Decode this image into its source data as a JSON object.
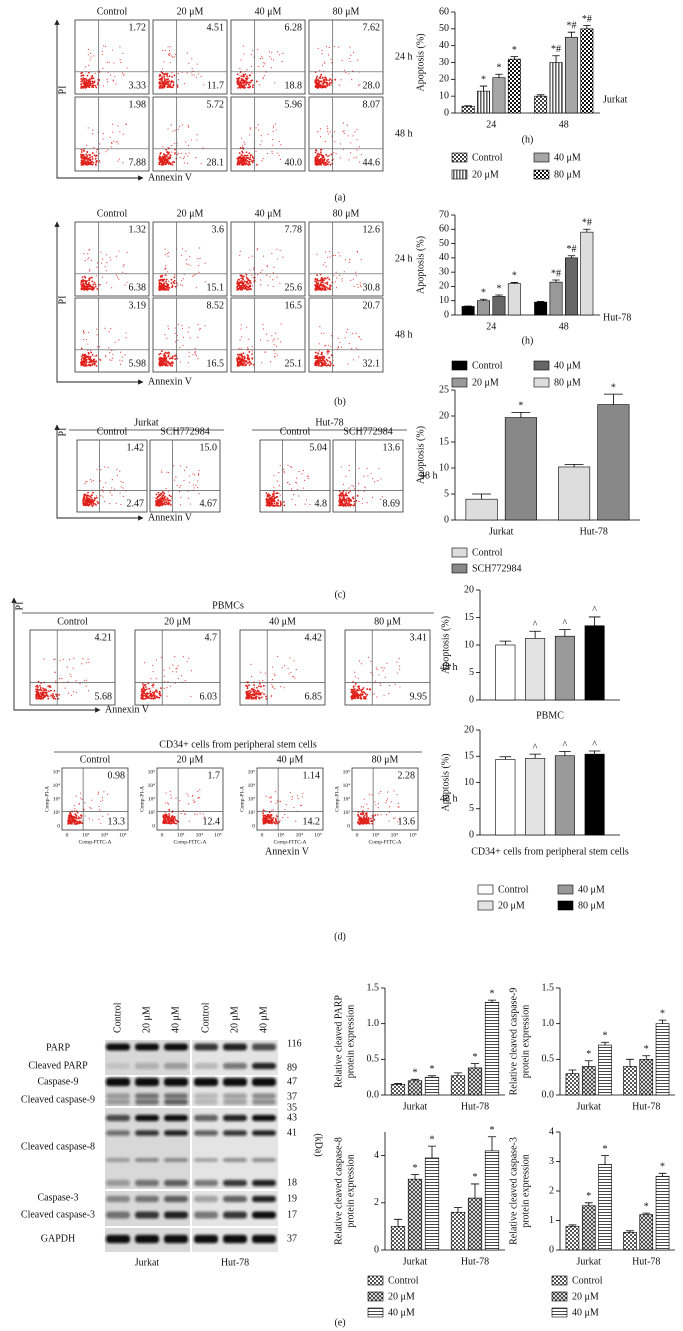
{
  "figure": {
    "panel_labels": [
      "(a)",
      "(b)",
      "(c)",
      "(d)",
      "(e)"
    ],
    "flows": [
      {
        "columns": [
          "Control",
          "20 μM",
          "40 μM",
          "80 μM"
        ],
        "ylabel": "PI",
        "xlabel": "Annexin V",
        "rows": [
          {
            "label": "24 h",
            "cells": [
              [
                "1.72",
                "3.33"
              ],
              [
                "4.51",
                "11.7"
              ],
              [
                "6.28",
                "18.8"
              ],
              [
                "7.62",
                "28.0"
              ]
            ]
          },
          {
            "label": "48 h",
            "cells": [
              [
                "1.98",
                "7.88"
              ],
              [
                "5.72",
                "28.1"
              ],
              [
                "5.96",
                "40.0"
              ],
              [
                "8.07",
                "44.6"
              ]
            ]
          }
        ]
      },
      {
        "columns": [
          "Control",
          "20 μM",
          "40 μM",
          "80 μM"
        ],
        "ylabel": "PI",
        "xlabel": "Annexin V",
        "rows": [
          {
            "label": "24 h",
            "cells": [
              [
                "1.32",
                "6.38"
              ],
              [
                "3.6",
                "15.1"
              ],
              [
                "7.78",
                "25.6"
              ],
              [
                "12.6",
                "30.8"
              ]
            ]
          },
          {
            "label": "48 h",
            "cells": [
              [
                "3.19",
                "5.98"
              ],
              [
                "8.52",
                "16.5"
              ],
              [
                "16.5",
                "25.1"
              ],
              [
                "20.7",
                "32.1"
              ]
            ]
          }
        ]
      },
      {
        "groups": [
          "Jurkat",
          "Hut-78"
        ],
        "columns": [
          "Control",
          "SCH772984",
          "Control",
          "SCH772984"
        ],
        "ylabel": "PI",
        "xlabel": "Annexin V",
        "rows": [
          {
            "label": "48 h",
            "cells": [
              [
                "1.42",
                "2.47"
              ],
              [
                "15.0",
                "4.67"
              ],
              [
                "5.04",
                "4.8"
              ],
              [
                "13.6",
                "8.69"
              ]
            ]
          }
        ]
      },
      {
        "groups": [
          "PBMCs"
        ],
        "columns": [
          "Control",
          "20 μM",
          "40 μM",
          "80 μM"
        ],
        "ylabel": "PI",
        "xlabel": "Annexin V",
        "rows": [
          {
            "label": "48 h",
            "cells": [
              [
                "4.21",
                "5.68"
              ],
              [
                "4.7",
                "6.03"
              ],
              [
                "4.42",
                "6.85"
              ],
              [
                "3.41",
                "9.95"
              ]
            ]
          }
        ]
      },
      {
        "groups": [
          "CD34+ cells from peripheral stem cells"
        ],
        "columns": [
          "Control",
          "20 μM",
          "40 μM",
          "80 μM"
        ],
        "xlabel": "Annexin V",
        "axis_titles": [
          "Comp-PI-A",
          "Comp-FITC-A"
        ],
        "yticks": [
          "0",
          "10²",
          "10³",
          "10⁴",
          "10⁵"
        ],
        "xticks": [
          "0",
          "10³",
          "10⁴",
          "10⁵"
        ],
        "rows": [
          {
            "label": "48 h",
            "cells": [
              [
                "0.98",
                "13.3"
              ],
              [
                "1.7",
                "12.4"
              ],
              [
                "1.14",
                "14.2"
              ],
              [
                "2.28",
                "13.6"
              ]
            ]
          }
        ]
      }
    ],
    "blot": {
      "columns": [
        "Control",
        "20 μM",
        "40 μM"
      ],
      "cell_lines": [
        "Jurkat",
        "Hut-78"
      ],
      "rows": [
        "PARP",
        "Cleaved PARP",
        "Caspase-9",
        "Cleaved caspase-9",
        "Cleaved caspase-8",
        "Caspase-3",
        "Cleaved caspase-3",
        "GAPDH"
      ],
      "kda": [
        "116",
        "89",
        "47",
        "37",
        "35",
        "43",
        "41",
        "18",
        "19",
        "17",
        "37"
      ],
      "unit": "(kDa)"
    }
  },
  "chart_data": [
    {
      "type": "bar",
      "ylabel": [
        "Apoptosis (%)"
      ],
      "xlabel": "(h)",
      "side_label": "Jurkat",
      "categories": [
        "24",
        "48"
      ],
      "ylim": [
        0,
        60
      ],
      "yticks": [
        0,
        10,
        20,
        30,
        40,
        50,
        60
      ],
      "series": [
        {
          "name": "Control",
          "color": "#444444",
          "pattern": "checker",
          "values": [
            4,
            10
          ],
          "errors": [
            0.3,
            0.8
          ]
        },
        {
          "name": "20 μM",
          "color": "#666666",
          "pattern": "vstripe",
          "values": [
            13,
            30
          ],
          "errors": [
            3,
            4
          ],
          "marks": [
            "*",
            "*#"
          ]
        },
        {
          "name": "40 μM",
          "color": "#a6a6a6",
          "values": [
            21,
            45
          ],
          "errors": [
            2,
            3
          ],
          "marks": [
            "*",
            "*#"
          ]
        },
        {
          "name": "80 μM",
          "color": "#111111",
          "pattern": "checker",
          "values": [
            32,
            50
          ],
          "errors": [
            1.5,
            2
          ],
          "marks": [
            "*",
            "*#"
          ]
        }
      ]
    },
    {
      "type": "bar",
      "ylabel": [
        "Apoptosis (%)"
      ],
      "xlabel": "(h)",
      "side_label": "Hut-78",
      "categories": [
        "24",
        "48"
      ],
      "ylim": [
        0,
        70
      ],
      "yticks": [
        0,
        10,
        20,
        30,
        40,
        50,
        60,
        70
      ],
      "series": [
        {
          "name": "Control",
          "color": "#000000",
          "values": [
            6,
            9
          ],
          "errors": [
            0.3,
            0.5
          ]
        },
        {
          "name": "20 μM",
          "color": "#999999",
          "values": [
            10,
            23
          ],
          "errors": [
            1,
            1.5
          ],
          "marks": [
            "*",
            "*#"
          ]
        },
        {
          "name": "40 μM",
          "color": "#666666",
          "values": [
            13,
            40
          ],
          "errors": [
            1,
            1.5
          ],
          "marks": [
            "*",
            "*#"
          ]
        },
        {
          "name": "80 μM",
          "color": "#dddddd",
          "values": [
            22,
            58
          ],
          "errors": [
            0.8,
            2
          ],
          "marks": [
            "*",
            "*#"
          ]
        }
      ]
    },
    {
      "type": "bar",
      "ylabel": [
        "Apoptosis (%)"
      ],
      "categories": [
        "Jurkat",
        "Hut-78"
      ],
      "ylim": [
        0,
        25
      ],
      "yticks": [
        0,
        5,
        10,
        15,
        20,
        25
      ],
      "series": [
        {
          "name": "Control",
          "color": "#dddddd",
          "values": [
            4,
            10.2
          ],
          "errors": [
            1,
            0.5
          ]
        },
        {
          "name": "SCH772984",
          "color": "#888888",
          "values": [
            19.7,
            22.2
          ],
          "errors": [
            1,
            2
          ],
          "marks": [
            "*",
            "*"
          ]
        }
      ]
    },
    {
      "type": "bar",
      "ylabel": [
        "Apoptosis (%)"
      ],
      "xlabel": "PBMC",
      "ylim": [
        0,
        20
      ],
      "yticks": [
        0,
        5,
        10,
        15,
        20
      ],
      "series": [
        {
          "color": "#ffffff",
          "values": [
            10
          ],
          "errors": [
            0.7
          ]
        },
        {
          "color": "#e3e3e3",
          "values": [
            11.2
          ],
          "errors": [
            1.3
          ],
          "marks": [
            "^"
          ]
        },
        {
          "color": "#999999",
          "values": [
            11.6
          ],
          "errors": [
            1.2
          ],
          "marks": [
            "^"
          ]
        },
        {
          "color": "#000000",
          "values": [
            13.5
          ],
          "errors": [
            1.6
          ],
          "marks": [
            "^"
          ]
        }
      ]
    },
    {
      "type": "bar",
      "ylabel": [
        "Apoptosis (%)"
      ],
      "xlabel": "CD34+ cells from peripheral stem cells",
      "ylim": [
        0,
        20
      ],
      "yticks": [
        0,
        5,
        10,
        15,
        20
      ],
      "series": [
        {
          "name": "Control",
          "color": "#ffffff",
          "values": [
            14.4
          ],
          "errors": [
            0.5
          ]
        },
        {
          "name": "20 μM",
          "color": "#e3e3e3",
          "values": [
            14.6
          ],
          "errors": [
            0.8
          ],
          "marks": [
            "^"
          ]
        },
        {
          "name": "40 μM",
          "color": "#999999",
          "values": [
            15.1
          ],
          "errors": [
            0.8
          ],
          "marks": [
            "^"
          ]
        },
        {
          "name": "80 μM",
          "color": "#000000",
          "values": [
            15.4
          ],
          "errors": [
            0.6
          ],
          "marks": [
            "^"
          ]
        }
      ]
    },
    {
      "type": "bar",
      "ylabel": [
        "Relative cleaved PARP",
        "protein expression"
      ],
      "categories": [
        "Jurkat",
        "Hut-78"
      ],
      "ylim": [
        0,
        1.5
      ],
      "yticks": [
        {
          "value": 0,
          "label": "0.0"
        },
        0.5,
        {
          "value": 1,
          "label": "1.0"
        },
        1.5
      ],
      "series": [
        {
          "color": "#555555",
          "pattern": "checker",
          "values": [
            0.15,
            0.27
          ],
          "errors": [
            0.01,
            0.04
          ]
        },
        {
          "color": "#333333",
          "pattern": "cross",
          "values": [
            0.2,
            0.38
          ],
          "errors": [
            0.02,
            0.06
          ],
          "marks": [
            "*",
            "*"
          ]
        },
        {
          "color": "#333333",
          "pattern": "hstripe",
          "values": [
            0.25,
            1.3
          ],
          "errors": [
            0.02,
            0.03
          ],
          "marks": [
            "*",
            "*"
          ]
        }
      ]
    },
    {
      "type": "bar",
      "ylabel": [
        "Relative cleaved caspase-9",
        "protein expression"
      ],
      "categories": [
        "Jurkat",
        "Hut-78"
      ],
      "ylim": [
        0,
        1.5
      ],
      "yticks": [
        {
          "value": 0,
          "label": "0.0"
        },
        0.5,
        {
          "value": 1,
          "label": "1.0"
        },
        1.5
      ],
      "series": [
        {
          "color": "#555555",
          "pattern": "checker",
          "values": [
            0.3,
            0.4
          ],
          "errors": [
            0.05,
            0.1
          ]
        },
        {
          "color": "#333333",
          "pattern": "cross",
          "values": [
            0.4,
            0.5
          ],
          "errors": [
            0.08,
            0.05
          ],
          "marks": [
            "*",
            "*"
          ]
        },
        {
          "color": "#333333",
          "pattern": "hstripe",
          "values": [
            0.7,
            1.0
          ],
          "errors": [
            0.04,
            0.05
          ],
          "marks": [
            "*",
            "*"
          ]
        }
      ]
    },
    {
      "type": "bar",
      "ylabel": [
        "Relative cleaved caspase-8",
        "protein expression"
      ],
      "categories": [
        "Jurkat",
        "Hut-78"
      ],
      "ylim": [
        0,
        5
      ],
      "yticks": [
        0,
        2,
        4
      ],
      "series": [
        {
          "name": "Control",
          "color": "#555555",
          "pattern": "checker",
          "values": [
            1.0,
            1.6
          ],
          "errors": [
            0.3,
            0.2
          ]
        },
        {
          "name": "20 μM",
          "color": "#333333",
          "pattern": "cross",
          "values": [
            3.0,
            2.2
          ],
          "errors": [
            0.2,
            0.6
          ],
          "marks": [
            "*",
            "*"
          ]
        },
        {
          "name": "40 μM",
          "color": "#333333",
          "pattern": "hstripe",
          "values": [
            3.9,
            4.2
          ],
          "errors": [
            0.5,
            0.6
          ],
          "marks": [
            "*",
            "*"
          ]
        }
      ]
    },
    {
      "type": "bar",
      "ylabel": [
        "Relative cleaved caspase-3",
        "protein expression"
      ],
      "categories": [
        "Jurkat",
        "Hut-78"
      ],
      "ylim": [
        0,
        4
      ],
      "yticks": [
        0,
        1,
        2,
        3,
        4
      ],
      "series": [
        {
          "name": "Control",
          "color": "#555555",
          "pattern": "checker",
          "values": [
            0.8,
            0.6
          ],
          "errors": [
            0.05,
            0.05
          ]
        },
        {
          "name": "20 μM",
          "color": "#333333",
          "pattern": "cross",
          "values": [
            1.5,
            1.2
          ],
          "errors": [
            0.1,
            0.05
          ],
          "marks": [
            "*",
            "*"
          ]
        },
        {
          "name": "40 μM",
          "color": "#333333",
          "pattern": "hstripe",
          "values": [
            2.9,
            2.5
          ],
          "errors": [
            0.3,
            0.1
          ],
          "marks": [
            "*",
            "*"
          ]
        }
      ]
    }
  ]
}
